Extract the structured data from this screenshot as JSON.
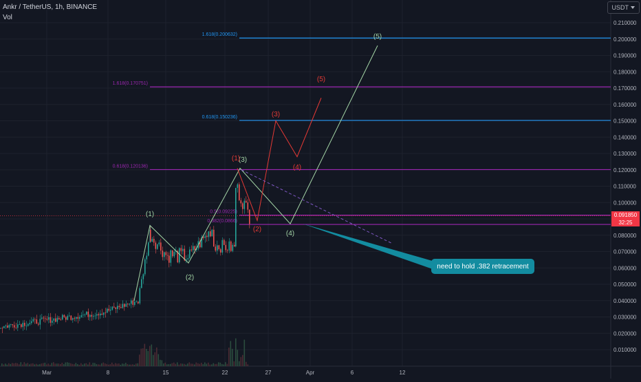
{
  "header": {
    "symbol": "Ankr / TetherUS, 1h, BINANCE",
    "volume_label": "Vol",
    "currency": "USDT"
  },
  "chart_data": {
    "type": "candlestick",
    "symbol": "Ankr / TetherUS",
    "timeframe": "1h",
    "exchange": "BINANCE",
    "y_ticks": [
      "0.210000",
      "0.200000",
      "0.190000",
      "0.180000",
      "0.170000",
      "0.160000",
      "0.150000",
      "0.140000",
      "0.130000",
      "0.120000",
      "0.110000",
      "0.100000",
      "0.090000",
      "0.080000",
      "0.070000",
      "0.060000",
      "0.050000",
      "0.040000",
      "0.030000",
      "0.020000",
      "0.010000"
    ],
    "x_ticks": [
      "Mar",
      "8",
      "15",
      "22",
      "27",
      "Apr",
      "6",
      "12"
    ],
    "ylim": [
      0.0,
      0.215
    ],
    "current_price": "0.091850",
    "countdown": "32:25",
    "fib_levels": [
      {
        "label": "1.618(0.200632)",
        "value": 0.200632,
        "color": "#2196f3"
      },
      {
        "label": "1.618(0.170751)",
        "value": 0.170751,
        "color": "#9c27b0"
      },
      {
        "label": "0.618(0.150236)",
        "value": 0.150236,
        "color": "#2196f3"
      },
      {
        "label": "0.618(0.120136)",
        "value": 0.120136,
        "color": "#9c27b0"
      },
      {
        "label": "0.5(0.09225)",
        "value": 0.09225,
        "color": "#9c27b0"
      },
      {
        "label": "0.382(0.0866)",
        "value": 0.0866,
        "color": "#9c27b0"
      }
    ],
    "wave_labels_green": [
      "(1)",
      "(2)",
      "(3)",
      "(4)",
      "(5)"
    ],
    "wave_labels_red": [
      "(1)",
      "(2)",
      "(3)",
      "(4)",
      "(5)"
    ],
    "annotation": "need to hold .382 retracement"
  }
}
